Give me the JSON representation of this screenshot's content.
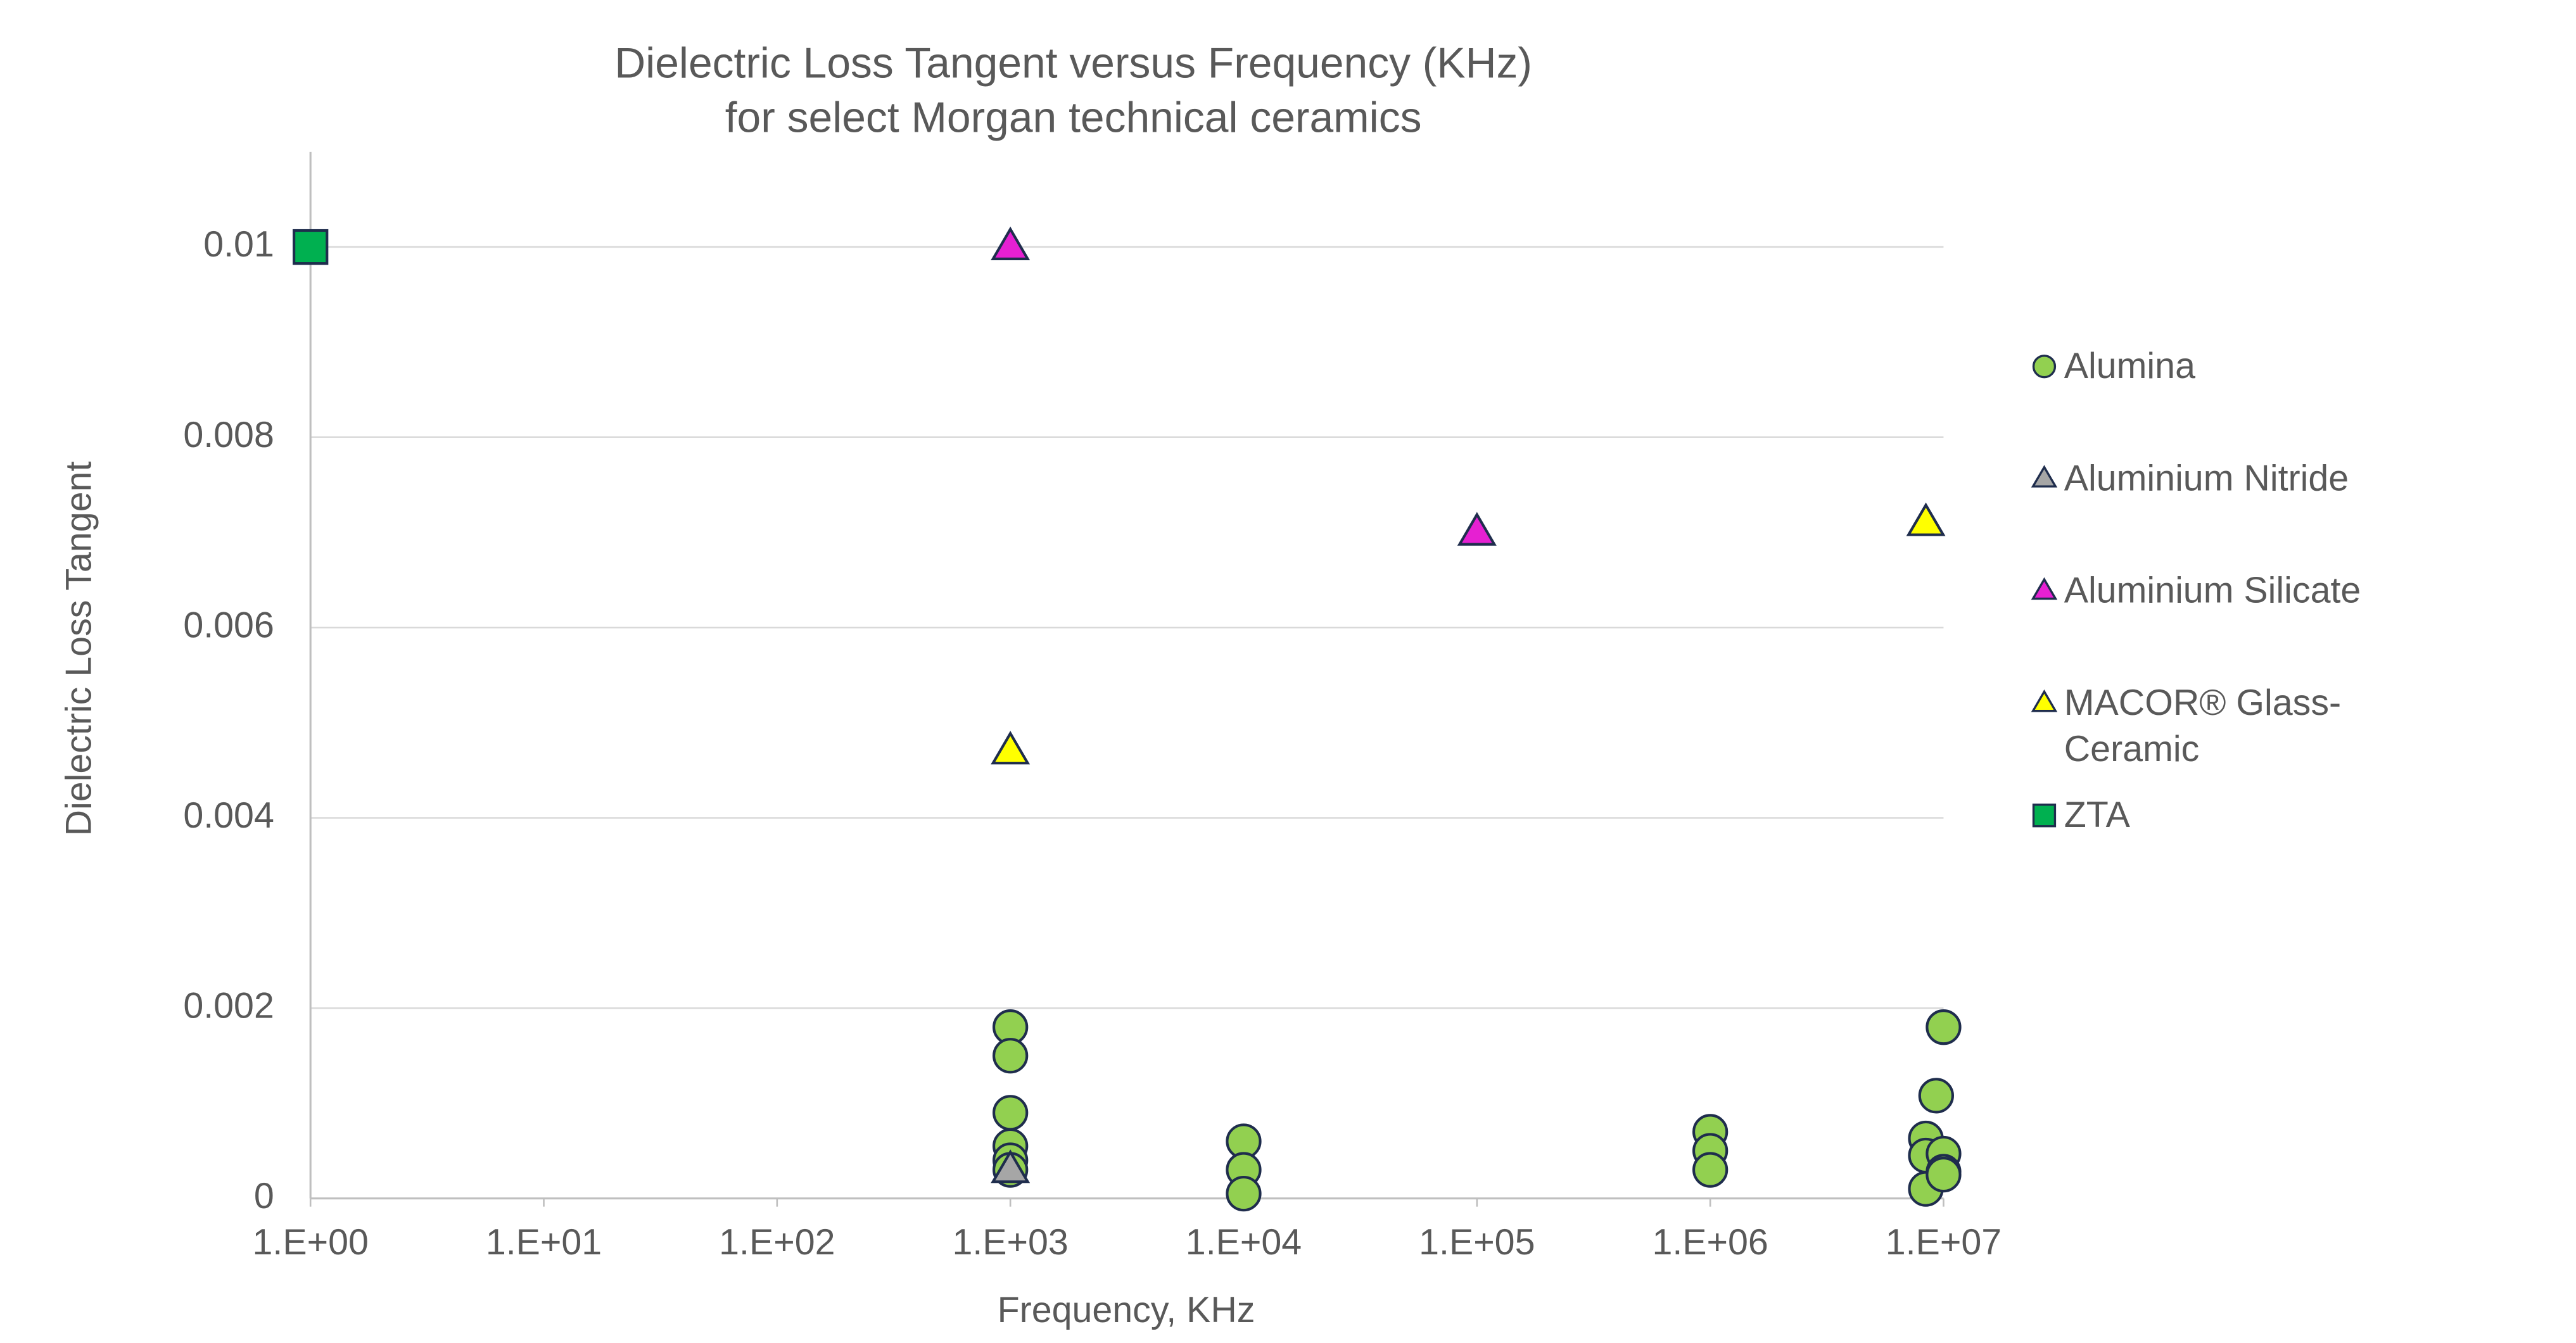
{
  "chart_data": {
    "type": "scatter",
    "title": [
      "Dielectric Loss Tangent versus Frequency (KHz)",
      "for select Morgan technical ceramics"
    ],
    "x_label": "Frequency, KHz",
    "y_label": "Dielectric Loss Tangent",
    "x_log": true,
    "grid": true,
    "legend": "right",
    "xlim": [
      1,
      10000000
    ],
    "xticks": [
      {
        "value": 1,
        "label": "1.E+00"
      },
      {
        "value": 10,
        "label": "1.E+01"
      },
      {
        "value": 100,
        "label": "1.E+02"
      },
      {
        "value": 1000,
        "label": "1.E+03"
      },
      {
        "value": 10000,
        "label": "1.E+04"
      },
      {
        "value": 100000,
        "label": "1.E+05"
      },
      {
        "value": 1000000,
        "label": "1.E+06"
      },
      {
        "value": 10000000,
        "label": "1.E+07"
      }
    ],
    "ylim": [
      0,
      0.011
    ],
    "yticks": [
      0,
      0.002,
      0.004,
      0.006,
      0.008,
      0.01
    ],
    "series": [
      {
        "name": "Alumina",
        "color": "#92d050",
        "marker": "circle",
        "x": [
          1000,
          1000,
          1000,
          1000,
          1000,
          1000,
          10000,
          10000,
          10000,
          1000000,
          1000000,
          1000000,
          10000000,
          9300000,
          8400000,
          8400000,
          10000000,
          10000000,
          8400000,
          10000000
        ],
        "values": [
          0.0018,
          0.0015,
          0.0009,
          0.00055,
          0.0004,
          0.0003,
          0.0006,
          0.0003,
          5e-05,
          0.0007,
          0.0005,
          0.0003,
          0.0018,
          0.00108,
          0.00063,
          0.00045,
          0.00047,
          0.00028,
          0.0001,
          0.00025
        ]
      },
      {
        "name": "Aluminium Nitride",
        "color": "#a6a6a6",
        "marker": "triangle",
        "x": [
          1000
        ],
        "values": [
          0.0003
        ]
      },
      {
        "name": "Aluminium Silicate",
        "color": "#e620d2",
        "marker": "triangle",
        "x": [
          1000,
          100000
        ],
        "values": [
          0.01,
          0.007
        ]
      },
      {
        "name": "MACOR® Glass-Ceramic",
        "color": "#ffff00",
        "marker": "triangle",
        "x": [
          1000,
          8400000
        ],
        "values": [
          0.0047,
          0.0071
        ]
      },
      {
        "name": "ZTA",
        "color": "#00b050",
        "marker": "square",
        "x": [
          1
        ],
        "values": [
          0.01
        ]
      }
    ]
  }
}
